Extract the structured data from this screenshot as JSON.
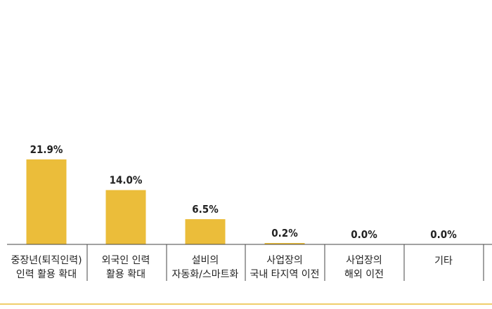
{
  "chart_data": {
    "type": "bar",
    "categories": [
      [
        "중장년(퇴직인력)",
        "인력 활용 확대"
      ],
      [
        "외국인 인력",
        "활용 확대"
      ],
      [
        "설비의",
        "자동화/스마트화"
      ],
      [
        "사업장의",
        "국내 타지역 이전"
      ],
      [
        "사업장의",
        "해외 이전"
      ],
      [
        "기타"
      ]
    ],
    "values": [
      21.9,
      14.0,
      6.5,
      0.2,
      0.0,
      0.0
    ],
    "value_labels": [
      "21.9%",
      "14.0%",
      "6.5%",
      "0.2%",
      "0.0%",
      "0.0%"
    ],
    "title": "",
    "xlabel": "",
    "ylabel": "",
    "unit": "%",
    "ylim": [
      0,
      21.9
    ],
    "grid": false,
    "legend": "none",
    "bar_color": "#ebbd3a",
    "axis_color": "#444444",
    "accent_line_color": "#ebbd3a"
  }
}
